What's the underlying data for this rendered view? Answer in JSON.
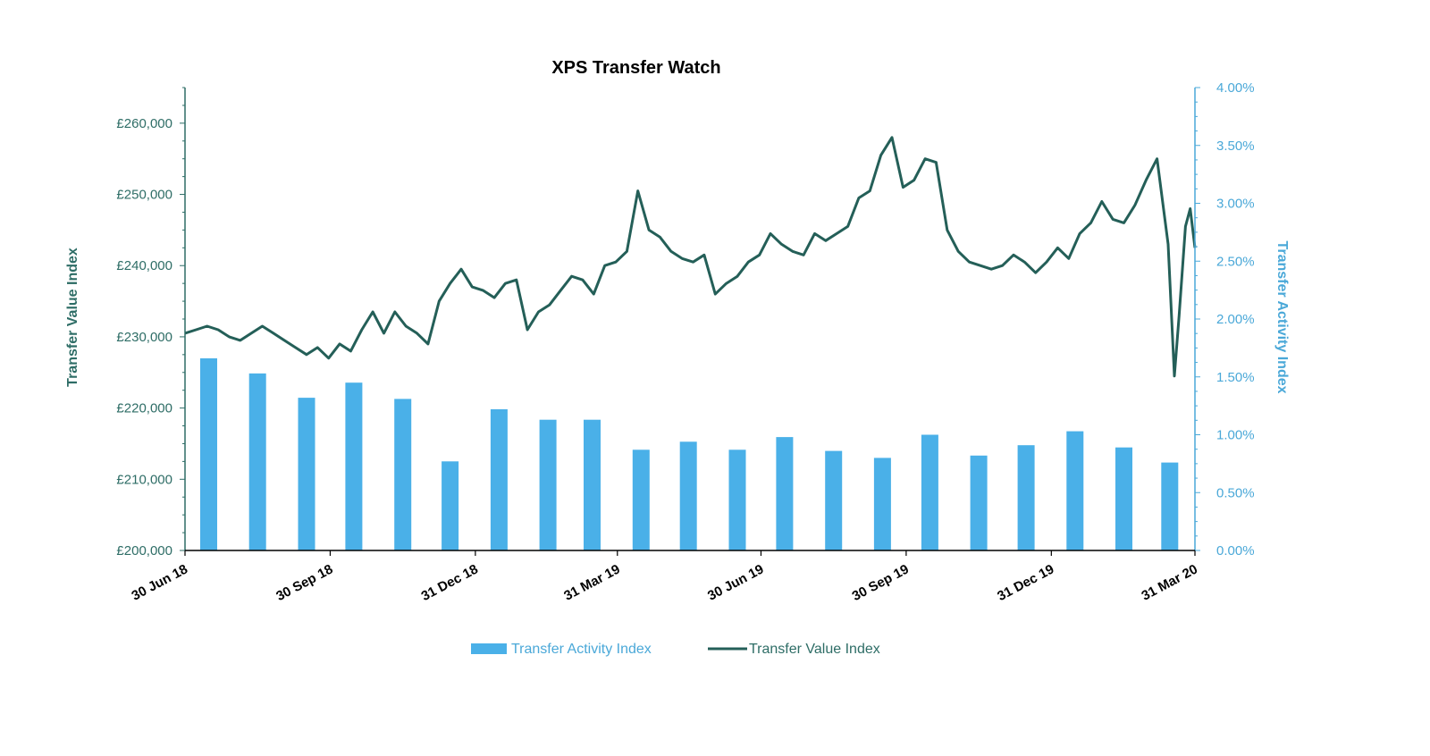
{
  "chart_data": {
    "type": "bar+line",
    "title": "XPS Transfer Watch",
    "left_axis": {
      "label": "Transfer Value Index",
      "ylim": [
        200000,
        265000
      ],
      "ticks": [
        200000,
        210000,
        220000,
        230000,
        240000,
        250000,
        260000
      ],
      "tick_labels": [
        "£200,000",
        "£210,000",
        "£220,000",
        "£230,000",
        "£240,000",
        "£250,000",
        "£260,000"
      ]
    },
    "right_axis": {
      "label": "Transfer Activity Index",
      "ylim": [
        0,
        4
      ],
      "ticks": [
        0,
        0.5,
        1.0,
        1.5,
        2.0,
        2.5,
        3.0,
        3.5,
        4.0
      ],
      "tick_labels": [
        "0.00%",
        "0.50%",
        "1.00%",
        "1.50%",
        "2.00%",
        "2.50%",
        "3.00%",
        "3.50%",
        "4.00%"
      ]
    },
    "x_axis": {
      "range": [
        "2018-06-30",
        "2020-03-31"
      ],
      "ticks": [
        "2018-06-30",
        "2018-09-30",
        "2018-12-31",
        "2019-03-31",
        "2019-06-30",
        "2019-09-30",
        "2019-12-31",
        "2020-03-31"
      ],
      "tick_labels": [
        "30 Jun 18",
        "30 Sep 18",
        "31 Dec 18",
        "31 Mar 19",
        "30 Jun 19",
        "30 Sep 19",
        "31 Dec 19",
        "31 Mar 20"
      ]
    },
    "series": [
      {
        "name": "Transfer Activity Index",
        "type": "bar",
        "axis": "right",
        "color": "#4ab0e8",
        "x": [
          "2018-07",
          "2018-08",
          "2018-09",
          "2018-10",
          "2018-11",
          "2018-12",
          "2019-01",
          "2019-02",
          "2019-03",
          "2019-04",
          "2019-05",
          "2019-06",
          "2019-07",
          "2019-08",
          "2019-09",
          "2019-10",
          "2019-11",
          "2019-12",
          "2020-01",
          "2020-02",
          "2020-03"
        ],
        "values": [
          1.66,
          1.53,
          1.32,
          1.45,
          1.31,
          0.77,
          1.22,
          1.13,
          1.13,
          0.87,
          0.94,
          0.87,
          0.98,
          0.86,
          0.8,
          1.0,
          0.82,
          0.91,
          1.03,
          0.89,
          0.76
        ]
      },
      {
        "name": "Transfer Value Index",
        "type": "line",
        "axis": "left",
        "color": "#245f58",
        "points": [
          [
            "2018-06-30",
            230500
          ],
          [
            "2018-07-07",
            231000
          ],
          [
            "2018-07-14",
            231500
          ],
          [
            "2018-07-21",
            231000
          ],
          [
            "2018-07-28",
            230000
          ],
          [
            "2018-08-04",
            229500
          ],
          [
            "2018-08-11",
            230500
          ],
          [
            "2018-08-18",
            231500
          ],
          [
            "2018-08-25",
            230500
          ],
          [
            "2018-09-01",
            229500
          ],
          [
            "2018-09-08",
            228500
          ],
          [
            "2018-09-15",
            227500
          ],
          [
            "2018-09-22",
            228500
          ],
          [
            "2018-09-29",
            227000
          ],
          [
            "2018-10-06",
            229000
          ],
          [
            "2018-10-13",
            228000
          ],
          [
            "2018-10-20",
            231000
          ],
          [
            "2018-10-27",
            233500
          ],
          [
            "2018-11-03",
            230500
          ],
          [
            "2018-11-10",
            233500
          ],
          [
            "2018-11-17",
            231500
          ],
          [
            "2018-11-24",
            230500
          ],
          [
            "2018-12-01",
            229000
          ],
          [
            "2018-12-08",
            235000
          ],
          [
            "2018-12-15",
            237500
          ],
          [
            "2018-12-22",
            239500
          ],
          [
            "2018-12-29",
            237000
          ],
          [
            "2019-01-05",
            236500
          ],
          [
            "2019-01-12",
            235500
          ],
          [
            "2019-01-19",
            237500
          ],
          [
            "2019-01-26",
            238000
          ],
          [
            "2019-02-02",
            231000
          ],
          [
            "2019-02-09",
            233500
          ],
          [
            "2019-02-16",
            234500
          ],
          [
            "2019-02-23",
            236500
          ],
          [
            "2019-03-02",
            238500
          ],
          [
            "2019-03-09",
            238000
          ],
          [
            "2019-03-16",
            236000
          ],
          [
            "2019-03-23",
            240000
          ],
          [
            "2019-03-30",
            240500
          ],
          [
            "2019-04-06",
            242000
          ],
          [
            "2019-04-13",
            250500
          ],
          [
            "2019-04-20",
            245000
          ],
          [
            "2019-04-27",
            244000
          ],
          [
            "2019-05-04",
            242000
          ],
          [
            "2019-05-11",
            241000
          ],
          [
            "2019-05-18",
            240500
          ],
          [
            "2019-05-25",
            241500
          ],
          [
            "2019-06-01",
            236000
          ],
          [
            "2019-06-08",
            237500
          ],
          [
            "2019-06-15",
            238500
          ],
          [
            "2019-06-22",
            240500
          ],
          [
            "2019-06-29",
            241500
          ],
          [
            "2019-07-06",
            244500
          ],
          [
            "2019-07-13",
            243000
          ],
          [
            "2019-07-20",
            242000
          ],
          [
            "2019-07-27",
            241500
          ],
          [
            "2019-08-03",
            244500
          ],
          [
            "2019-08-10",
            243500
          ],
          [
            "2019-08-17",
            244500
          ],
          [
            "2019-08-24",
            245500
          ],
          [
            "2019-08-31",
            249500
          ],
          [
            "2019-09-07",
            250500
          ],
          [
            "2019-09-14",
            255500
          ],
          [
            "2019-09-21",
            258000
          ],
          [
            "2019-09-28",
            251000
          ],
          [
            "2019-10-05",
            252000
          ],
          [
            "2019-10-12",
            255000
          ],
          [
            "2019-10-19",
            254500
          ],
          [
            "2019-10-26",
            245000
          ],
          [
            "2019-11-02",
            242000
          ],
          [
            "2019-11-09",
            240500
          ],
          [
            "2019-11-16",
            240000
          ],
          [
            "2019-11-23",
            239500
          ],
          [
            "2019-11-30",
            240000
          ],
          [
            "2019-12-07",
            241500
          ],
          [
            "2019-12-14",
            240500
          ],
          [
            "2019-12-21",
            239000
          ],
          [
            "2019-12-28",
            240500
          ],
          [
            "2020-01-04",
            242500
          ],
          [
            "2020-01-11",
            241000
          ],
          [
            "2020-01-18",
            244500
          ],
          [
            "2020-01-25",
            246000
          ],
          [
            "2020-02-01",
            249000
          ],
          [
            "2020-02-08",
            246500
          ],
          [
            "2020-02-15",
            246000
          ],
          [
            "2020-02-22",
            248500
          ],
          [
            "2020-02-29",
            252000
          ],
          [
            "2020-03-07",
            255000
          ],
          [
            "2020-03-14",
            243000
          ],
          [
            "2020-03-18",
            224500
          ],
          [
            "2020-03-21",
            233000
          ],
          [
            "2020-03-25",
            245500
          ],
          [
            "2020-03-28",
            248000
          ],
          [
            "2020-03-31",
            242500
          ]
        ]
      }
    ],
    "legend": {
      "position": "bottom-center",
      "entries": [
        "Transfer Activity Index",
        "Transfer Value Index"
      ]
    },
    "grid": false
  }
}
